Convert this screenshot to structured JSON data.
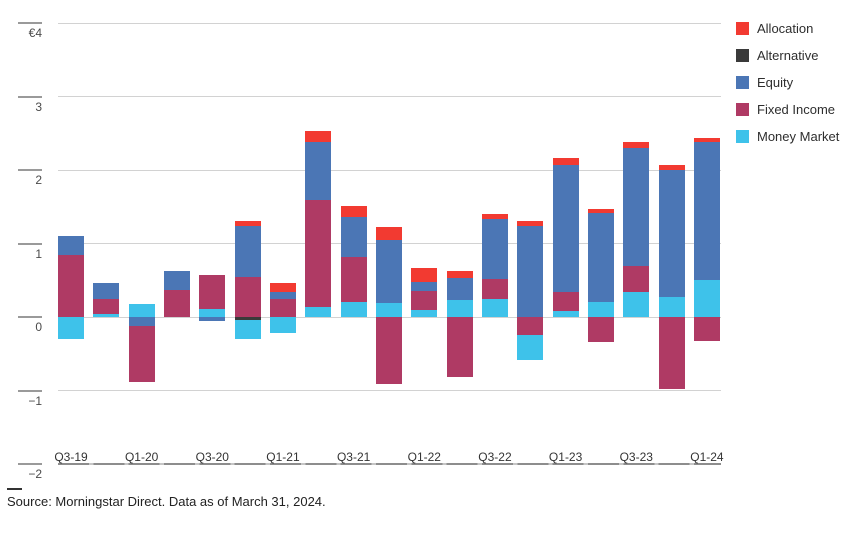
{
  "chart_data": {
    "type": "bar",
    "stacked": true,
    "title": "",
    "unit": "EUR billions",
    "ylim": [
      -2,
      4
    ],
    "grid": true,
    "legend_position": "top-right",
    "y_ticks": [
      {
        "label": "€4",
        "value": 4
      },
      {
        "label": "3",
        "value": 3
      },
      {
        "label": "2",
        "value": 2
      },
      {
        "label": "1",
        "value": 1
      },
      {
        "label": "0",
        "value": 0
      },
      {
        "label": "−1",
        "value": -1
      },
      {
        "label": "−2",
        "value": -2
      }
    ],
    "categories": [
      "Q3-19",
      "Q4-19",
      "Q1-20",
      "Q2-20",
      "Q3-20",
      "Q4-20",
      "Q1-21",
      "Q2-21",
      "Q3-21",
      "Q4-21",
      "Q1-22",
      "Q2-22",
      "Q3-22",
      "Q4-22",
      "Q1-23",
      "Q2-23",
      "Q3-23",
      "Q4-23",
      "Q1-24"
    ],
    "x_tick_labels": [
      "Q3-19",
      "Q1-20",
      "Q3-20",
      "Q1-21",
      "Q3-21",
      "Q1-22",
      "Q3-22",
      "Q1-23",
      "Q3-23",
      "Q1-24"
    ],
    "series": [
      {
        "name": "Allocation",
        "color": "#f23a31",
        "values": [
          0,
          0,
          0,
          0,
          0,
          0.07,
          0.12,
          0.15,
          0.15,
          0.18,
          0.18,
          0.1,
          0.07,
          0.07,
          0.09,
          0.06,
          0.08,
          0.07,
          0.06
        ]
      },
      {
        "name": "Alternative",
        "color": "#3a3a3a",
        "values": [
          0,
          0,
          0,
          0,
          0,
          -0.04,
          0,
          0,
          0,
          0,
          0,
          0,
          0,
          0,
          0,
          0,
          0,
          0,
          0
        ]
      },
      {
        "name": "Equity",
        "color": "#4b76b5",
        "values": [
          0.25,
          0.22,
          -0.12,
          0.25,
          -0.06,
          0.7,
          0.1,
          0.79,
          0.54,
          0.86,
          0.12,
          0.3,
          0.81,
          1.24,
          1.73,
          1.2,
          1.61,
          1.73,
          1.87
        ]
      },
      {
        "name": "Fixed Income",
        "color": "#af3a64",
        "values": [
          0.85,
          0.2,
          -0.76,
          0.37,
          0.46,
          0.54,
          0.24,
          1.45,
          0.61,
          -0.91,
          0.26,
          -0.81,
          0.27,
          -0.24,
          0.26,
          -0.34,
          0.35,
          -0.98,
          -0.33
        ]
      },
      {
        "name": "Money Market",
        "color": "#3ec2ea",
        "values": [
          -0.3,
          0.04,
          0.18,
          0,
          0.11,
          -0.26,
          -0.22,
          0.14,
          0.21,
          0.19,
          0.1,
          0.23,
          0.25,
          -0.34,
          0.08,
          0.21,
          0.34,
          0.27,
          0.51
        ]
      }
    ],
    "footnote": "Source: Morningstar Direct. Data as of March 31, 2024."
  },
  "colors": {
    "gridline": "#d2d2d2",
    "axis": "#8d8d8d",
    "tick_label": "#4a4a4a"
  }
}
